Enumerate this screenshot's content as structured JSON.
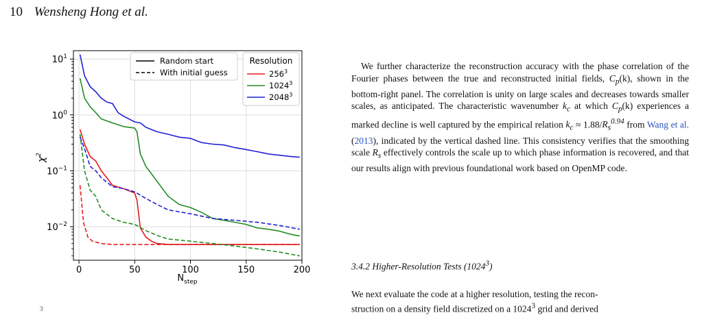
{
  "header": {
    "page_number": "10",
    "authors": "Wensheng Hong et al."
  },
  "body": {
    "paragraph_1": {
      "t1": "We further characterize the reconstruction accuracy with the phase correlation of the Fourier phases between the true and reconstructed initial fields, ",
      "m1": "C",
      "m1sub": "p",
      "m1tail": "(k)",
      "t2": ", shown in the bottom-right panel. The correlation is unity on large scales and decreases towards smaller scales, as anticipated. The characteristic wavenumber ",
      "m2": "k",
      "m2sub": "c",
      "t3": " at which ",
      "t4": " experiences a marked decline is well captured by the empirical relation ",
      "m3a": "k",
      "m3b": " ≈ 1.88/",
      "m3c": "R",
      "m3sub": "s",
      "m3sup": "0.94",
      "t5": " from ",
      "cite": "Wang et al.",
      "cite_open": " (",
      "cite_year": "2013",
      "cite_close": ")",
      "t6": ", indicated by the vertical dashed line. This consistency verifies that the smoothing scale ",
      "m4": "R",
      "m4sub": "s",
      "t7": " effectively controls the scale up to which phase information is recovered, and that our results align with previous foundational work based on OpenMP code."
    },
    "section_heading": {
      "text": "3.4.2  Higher-Resolution Tests (1024",
      "sup": "3",
      "close": ")"
    },
    "paragraph_2": {
      "line1": "We next evaluate the code at a higher resolution, testing the recon-",
      "line2a": "struction on a density field discretized on a 1024",
      "line2sup": "3",
      "line2b": " grid and derived"
    },
    "stray_mark": "3"
  },
  "chart_data": {
    "type": "line",
    "xlabel": "N",
    "xlabel_sub": "step",
    "ylabel": "χ",
    "ylabel_sup": "2",
    "xlim": [
      -5,
      200
    ],
    "ylim_log10": [
      -2.6,
      1.15
    ],
    "yscale": "log",
    "xticks": [
      0,
      50,
      100,
      150,
      200
    ],
    "yticks": [
      {
        "value": 10,
        "base": "10",
        "exp": "1"
      },
      {
        "value": 1,
        "base": "10",
        "exp": "0"
      },
      {
        "value": 0.1,
        "base": "10",
        "exp": "−1"
      },
      {
        "value": 0.01,
        "base": "10",
        "exp": "−2"
      }
    ],
    "grid": true,
    "legend_linestyle": {
      "placement": "top-center",
      "entries": [
        {
          "label": "Random start",
          "dash": "solid"
        },
        {
          "label": "With initial guess",
          "dash": "dashed"
        }
      ]
    },
    "legend_resolution": {
      "placement": "top-right",
      "title": "Resolution",
      "entries": [
        {
          "label": "256",
          "sup": "3",
          "color": "#e41a1c"
        },
        {
          "label": "1024",
          "sup": "3",
          "color": "#228b22"
        },
        {
          "label": "2048",
          "sup": "3",
          "color": "#1f1fd6"
        }
      ]
    },
    "series": [
      {
        "resolution": "256",
        "color": "#e41a1c",
        "dash": "solid",
        "x": [
          1,
          5,
          10,
          15,
          20,
          25,
          30,
          40,
          50,
          52,
          55,
          60,
          65,
          70,
          80,
          100,
          120,
          150,
          198
        ],
        "y": [
          0.55,
          0.3,
          0.18,
          0.15,
          0.1,
          0.075,
          0.055,
          0.048,
          0.04,
          0.03,
          0.0095,
          0.0065,
          0.0055,
          0.005,
          0.0048,
          0.0048,
          0.0048,
          0.0048,
          0.0048
        ]
      },
      {
        "resolution": "256",
        "color": "#e41a1c",
        "dash": "dashed",
        "x": [
          1,
          4,
          8,
          12,
          20,
          30,
          50,
          80,
          120,
          160,
          198
        ],
        "y": [
          0.055,
          0.012,
          0.0065,
          0.0055,
          0.005,
          0.0048,
          0.0048,
          0.0048,
          0.0048,
          0.0048,
          0.0048
        ]
      },
      {
        "resolution": "1024",
        "color": "#228b22",
        "dash": "solid",
        "x": [
          1,
          5,
          10,
          15,
          20,
          30,
          40,
          45,
          50,
          52,
          55,
          60,
          70,
          80,
          90,
          100,
          110,
          120,
          130,
          140,
          150,
          160,
          170,
          180,
          190,
          198
        ],
        "y": [
          4.5,
          2.0,
          1.4,
          1.1,
          0.85,
          0.72,
          0.62,
          0.6,
          0.58,
          0.5,
          0.2,
          0.12,
          0.065,
          0.035,
          0.025,
          0.022,
          0.018,
          0.014,
          0.013,
          0.012,
          0.011,
          0.0095,
          0.009,
          0.0083,
          0.0073,
          0.0068
        ]
      },
      {
        "resolution": "1024",
        "color": "#228b22",
        "dash": "dashed",
        "x": [
          1,
          5,
          10,
          15,
          20,
          30,
          40,
          50,
          60,
          70,
          80,
          100,
          120,
          140,
          160,
          180,
          198
        ],
        "y": [
          0.45,
          0.1,
          0.045,
          0.035,
          0.02,
          0.014,
          0.012,
          0.011,
          0.0085,
          0.007,
          0.006,
          0.0055,
          0.005,
          0.0045,
          0.004,
          0.0035,
          0.003
        ]
      },
      {
        "resolution": "2048",
        "color": "#1f1fd6",
        "dash": "solid",
        "x": [
          1,
          5,
          10,
          15,
          20,
          25,
          30,
          35,
          40,
          50,
          55,
          60,
          70,
          80,
          90,
          100,
          110,
          120,
          130,
          140,
          150,
          160,
          170,
          180,
          190,
          198
        ],
        "y": [
          12,
          5.0,
          3.2,
          2.6,
          2.0,
          1.7,
          1.6,
          1.1,
          0.95,
          0.75,
          0.72,
          0.6,
          0.5,
          0.45,
          0.4,
          0.38,
          0.32,
          0.3,
          0.29,
          0.26,
          0.24,
          0.22,
          0.2,
          0.19,
          0.18,
          0.175
        ]
      },
      {
        "resolution": "2048",
        "color": "#1f1fd6",
        "dash": "dashed",
        "x": [
          1,
          5,
          10,
          15,
          20,
          30,
          40,
          50,
          60,
          70,
          80,
          100,
          120,
          140,
          160,
          180,
          198
        ],
        "y": [
          0.4,
          0.25,
          0.12,
          0.1,
          0.075,
          0.052,
          0.048,
          0.042,
          0.032,
          0.025,
          0.02,
          0.017,
          0.014,
          0.013,
          0.012,
          0.0105,
          0.009
        ]
      }
    ]
  }
}
